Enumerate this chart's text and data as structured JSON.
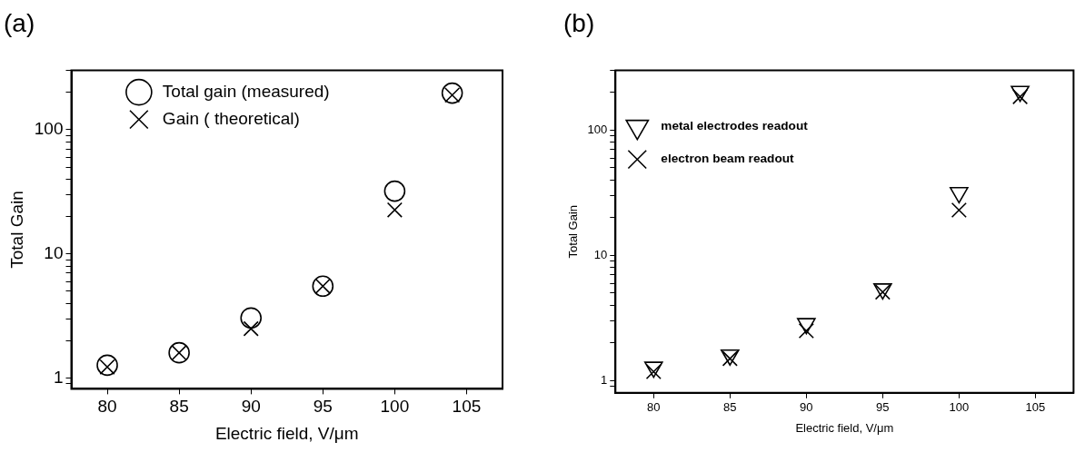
{
  "chart_data": [
    {
      "type": "scatter",
      "title": "(a)",
      "xlabel": "Electric field, V/μm",
      "ylabel": "Total Gain",
      "log": "y",
      "legend": "top",
      "grid": false,
      "xlim": [
        77.5,
        107.5
      ],
      "xticks": [
        80,
        85,
        90,
        95,
        100,
        105
      ],
      "ylim": [
        0.82,
        300
      ],
      "yticks": [
        {
          "value": 0.9,
          "label": null
        },
        1,
        {
          "value": 2,
          "label": null
        },
        {
          "value": 3,
          "label": null
        },
        {
          "value": 4,
          "label": null
        },
        {
          "value": 5,
          "label": null
        },
        {
          "value": 6,
          "label": null
        },
        {
          "value": 7,
          "label": null
        },
        {
          "value": 8,
          "label": null
        },
        {
          "value": 9,
          "label": null
        },
        10,
        {
          "value": 20,
          "label": null
        },
        {
          "value": 30,
          "label": null
        },
        {
          "value": 40,
          "label": null
        },
        {
          "value": 50,
          "label": null
        },
        {
          "value": 60,
          "label": null
        },
        {
          "value": 70,
          "label": null
        },
        {
          "value": 80,
          "label": null
        },
        {
          "value": 90,
          "label": null
        },
        100,
        {
          "value": 200,
          "label": null
        },
        {
          "value": 300,
          "label": null
        }
      ],
      "series": [
        {
          "name": "Total gain (measured)",
          "color": "#000000",
          "marker": "circle",
          "x": [
            80,
            85,
            90,
            95,
            100,
            104
          ],
          "values": [
            1.27,
            1.6,
            3.05,
            5.5,
            32,
            197
          ]
        },
        {
          "name": "Gain ( theoretical)",
          "color": "#000000",
          "marker": "cross",
          "x": [
            80,
            85,
            90,
            95,
            100,
            104
          ],
          "values": [
            1.23,
            1.6,
            2.5,
            5.5,
            22.6,
            190
          ]
        }
      ]
    },
    {
      "type": "scatter",
      "title": "(b)",
      "xlabel": "Electric field, V/μm",
      "ylabel": "Total Gain",
      "log": "y",
      "legend": "top left",
      "grid": false,
      "xlim": [
        77.5,
        107.5
      ],
      "xticks": [
        80,
        85,
        90,
        95,
        100,
        105
      ],
      "ylim": [
        0.8,
        300
      ],
      "yticks": [
        {
          "value": 0.9,
          "label": null
        },
        1,
        {
          "value": 2,
          "label": null
        },
        {
          "value": 3,
          "label": null
        },
        {
          "value": 4,
          "label": null
        },
        {
          "value": 5,
          "label": null
        },
        {
          "value": 6,
          "label": null
        },
        {
          "value": 7,
          "label": null
        },
        {
          "value": 8,
          "label": null
        },
        {
          "value": 9,
          "label": null
        },
        10,
        {
          "value": 20,
          "label": null
        },
        {
          "value": 30,
          "label": null
        },
        {
          "value": 40,
          "label": null
        },
        {
          "value": 50,
          "label": null
        },
        {
          "value": 60,
          "label": null
        },
        {
          "value": 70,
          "label": null
        },
        {
          "value": 80,
          "label": null
        },
        {
          "value": 90,
          "label": null
        },
        100,
        {
          "value": 200,
          "label": null
        },
        {
          "value": 300,
          "label": null
        }
      ],
      "series": [
        {
          "name": "metal electrodes readout",
          "color": "#000000",
          "marker": "triangle",
          "x": [
            80,
            85,
            90,
            95,
            100,
            104
          ],
          "values": [
            1.28,
            1.6,
            2.85,
            5.4,
            31.7,
            204
          ]
        },
        {
          "name": "electron beam readout",
          "color": "#000000",
          "marker": "cross",
          "x": [
            80,
            85,
            90,
            95,
            100,
            104
          ],
          "values": [
            1.18,
            1.5,
            2.5,
            5.1,
            23,
            185
          ]
        }
      ]
    }
  ]
}
